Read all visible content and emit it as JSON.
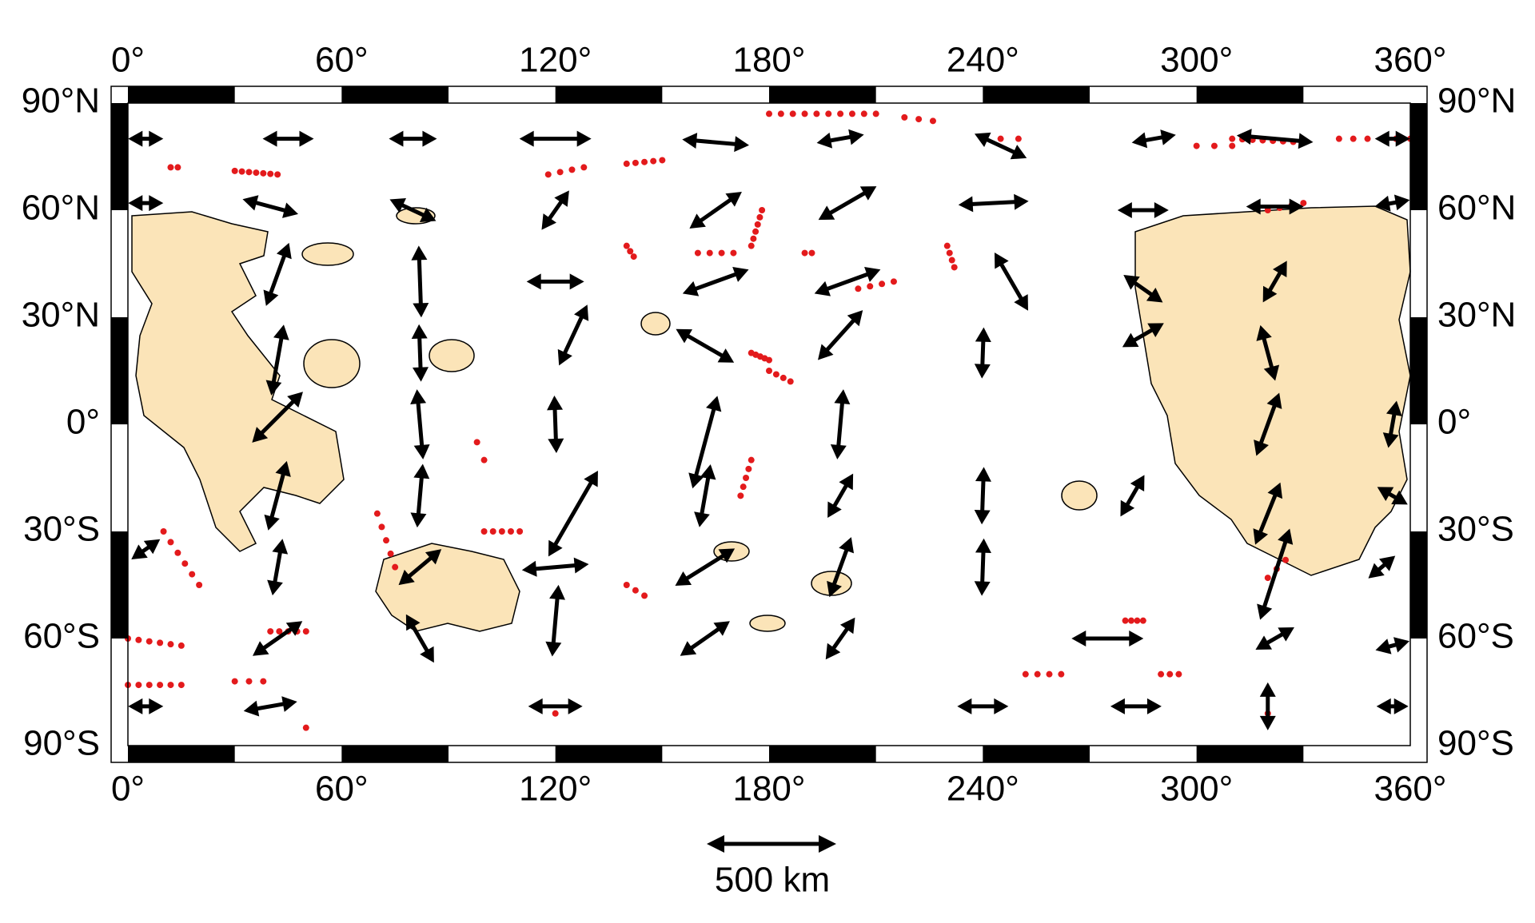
{
  "map": {
    "top_labels": [
      "0°",
      "60°",
      "120°",
      "180°",
      "240°",
      "300°",
      "360°"
    ],
    "bottom_labels": [
      "0°",
      "60°",
      "120°",
      "180°",
      "240°",
      "300°",
      "360°"
    ],
    "left_labels": [
      "90°N",
      "60°N",
      "30°N",
      "0°",
      "30°S",
      "60°S",
      "90°S"
    ],
    "right_labels": [
      "90°N",
      "60°N",
      "30°N",
      "0°",
      "30°S",
      "60°S",
      "90°S"
    ],
    "scale_label": "500 km"
  }
}
